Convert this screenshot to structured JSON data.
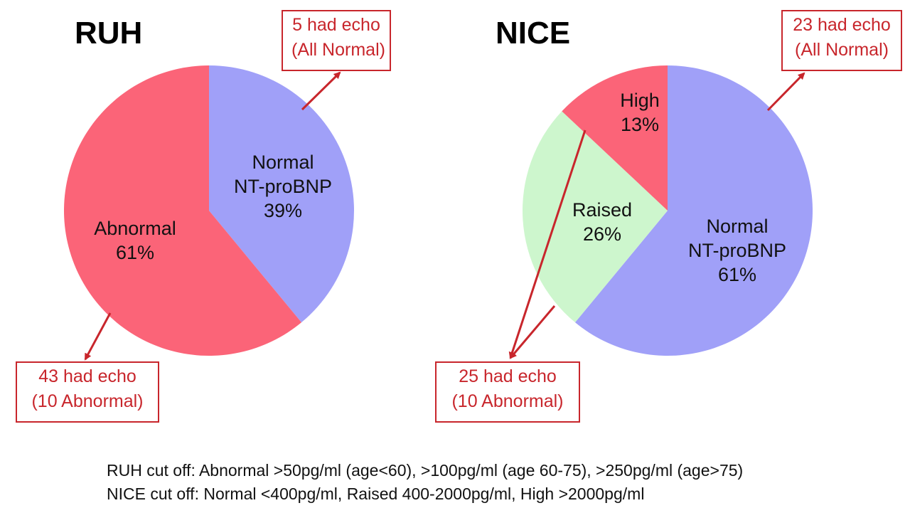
{
  "chart_data": [
    {
      "type": "pie",
      "title": "RUH",
      "slices": [
        {
          "label": "Normal\nNT-proBNP",
          "percent": 39,
          "display": "39%",
          "color": "#a0a0f8"
        },
        {
          "label": "Abnormal",
          "percent": 61,
          "display": "61%",
          "color": "#fb6478"
        }
      ],
      "annotations": {
        "normal": [
          "5 had echo",
          "(All Normal)"
        ],
        "abnormal": [
          "43 had echo",
          "(10 Abnormal)"
        ]
      }
    },
    {
      "type": "pie",
      "title": "NICE",
      "slices": [
        {
          "label": "Normal\nNT-proBNP",
          "percent": 61,
          "display": "61%",
          "color": "#a0a0f8"
        },
        {
          "label": "Raised",
          "percent": 26,
          "display": "26%",
          "color": "#cdf6cd"
        },
        {
          "label": "High",
          "percent": 13,
          "display": "13%",
          "color": "#fb6478"
        }
      ],
      "annotations": {
        "normal": [
          "23 had echo",
          "(All Normal)"
        ],
        "raised_high": [
          "25 had echo",
          "(10 Abnormal)"
        ]
      }
    }
  ],
  "footnotes": {
    "ruh": "RUH cut off: Abnormal >50pg/ml (age<60), >100pg/ml (age 60-75), >250pg/ml (age>75)",
    "nice": "NICE cut off: Normal <400pg/ml, Raised 400-2000pg/ml, High >2000pg/ml"
  },
  "colors": {
    "arrow": "#c8262c",
    "callout_border": "#c8262c"
  }
}
